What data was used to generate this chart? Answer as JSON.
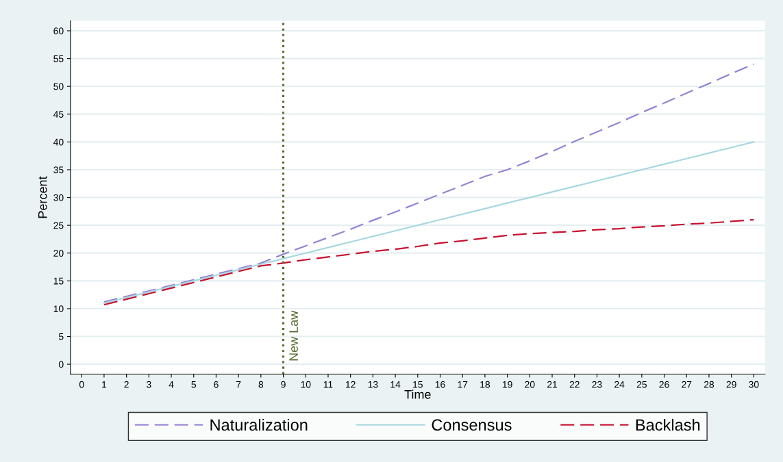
{
  "chart_data": {
    "type": "line",
    "xlabel": "Time",
    "ylabel": "Percent",
    "x": [
      1,
      2,
      3,
      4,
      5,
      6,
      7,
      8,
      9,
      10,
      11,
      12,
      13,
      14,
      15,
      16,
      17,
      18,
      19,
      20,
      21,
      22,
      23,
      24,
      25,
      26,
      27,
      28,
      29,
      30
    ],
    "series": [
      {
        "name": "Naturalization",
        "color": "#9683d6",
        "line_style": "dashed",
        "values": [
          11.2,
          12.2,
          13.2,
          14.2,
          15.2,
          16.2,
          17.2,
          18.2,
          19.8,
          21.3,
          22.8,
          24.3,
          25.9,
          27.4,
          29.0,
          30.6,
          32.2,
          33.8,
          35.0,
          36.6,
          38.3,
          40.1,
          41.8,
          43.5,
          45.3,
          47.0,
          48.8,
          50.5,
          52.3,
          54.0
        ]
      },
      {
        "name": "Consensus",
        "color": "#a8d8e0",
        "line_style": "solid",
        "values": [
          11,
          12,
          13,
          14,
          15,
          16,
          17,
          18,
          19,
          20,
          21,
          22,
          23,
          24,
          25,
          26,
          27,
          28,
          29,
          30,
          31,
          32,
          33,
          34,
          35,
          36,
          37,
          38,
          39,
          40
        ]
      },
      {
        "name": "Backlash",
        "color": "#c8102e",
        "line_style": "dashed",
        "values": [
          10.7,
          11.7,
          12.7,
          13.7,
          14.7,
          15.7,
          16.7,
          17.7,
          18.2,
          18.8,
          19.3,
          19.8,
          20.3,
          20.7,
          21.2,
          21.8,
          22.2,
          22.7,
          23.2,
          23.5,
          23.7,
          23.9,
          24.2,
          24.4,
          24.7,
          24.9,
          25.2,
          25.4,
          25.7,
          26.0
        ]
      }
    ],
    "xlim": [
      -0.5,
      30.5
    ],
    "ylim": [
      -1.8,
      61.8
    ],
    "xticks": [
      0,
      1,
      2,
      3,
      4,
      5,
      6,
      7,
      8,
      9,
      10,
      11,
      12,
      13,
      14,
      15,
      16,
      17,
      18,
      19,
      20,
      21,
      22,
      23,
      24,
      25,
      26,
      27,
      28,
      29,
      30
    ],
    "yticks": [
      0,
      5,
      10,
      15,
      20,
      25,
      30,
      35,
      40,
      45,
      50,
      55,
      60
    ],
    "ref_lines": [
      {
        "axis": "x",
        "value": 9,
        "label": "New Law",
        "color": "#556b2f",
        "line_style": "dotted"
      }
    ],
    "grid": "y",
    "legend": "bottom"
  }
}
